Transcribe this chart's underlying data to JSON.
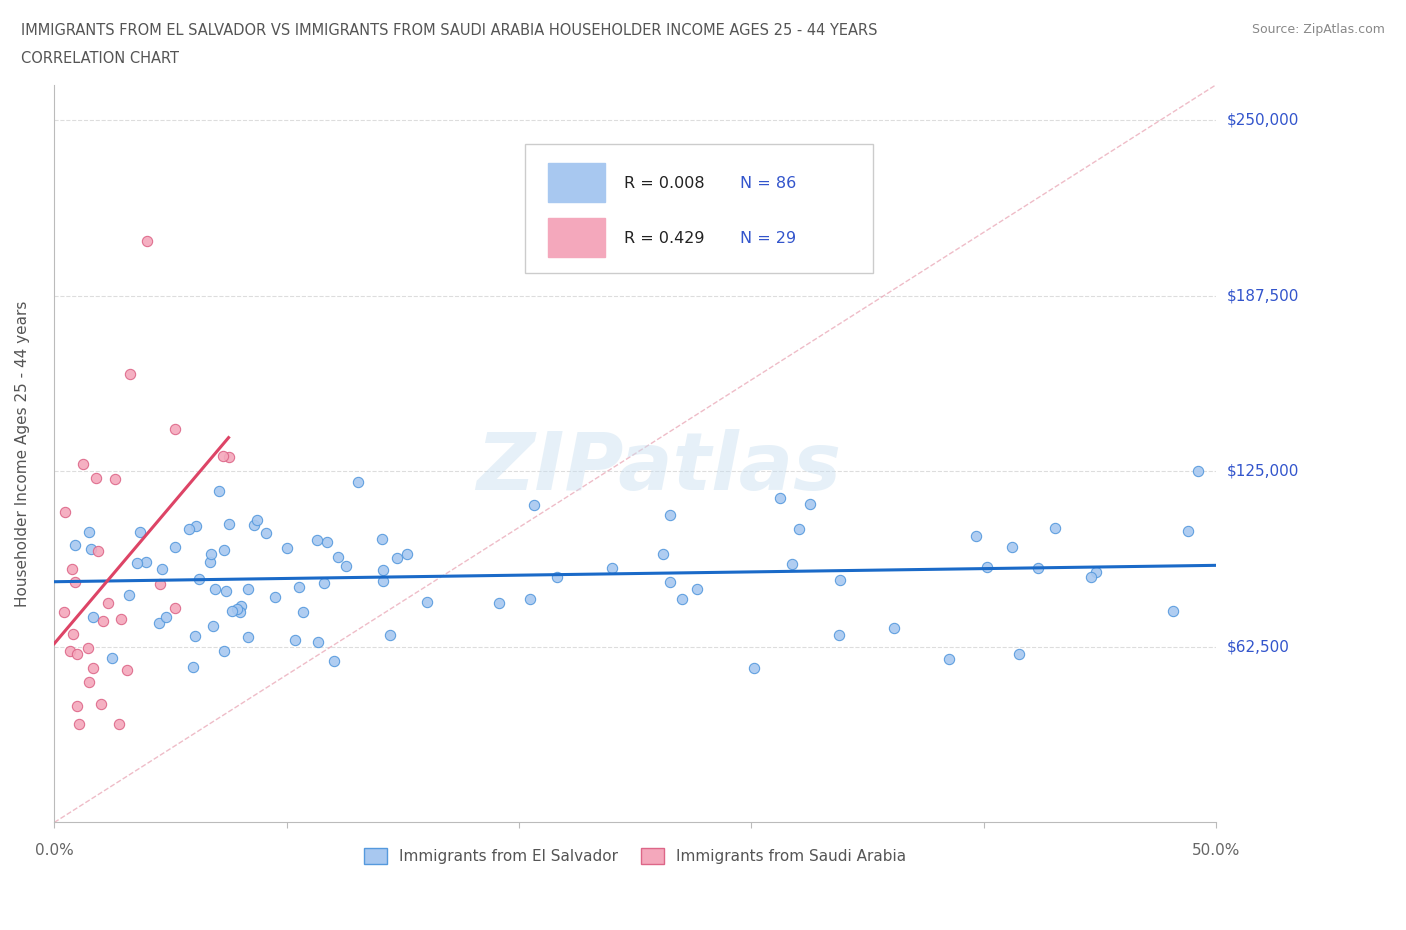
{
  "title_line1": "IMMIGRANTS FROM EL SALVADOR VS IMMIGRANTS FROM SAUDI ARABIA HOUSEHOLDER INCOME AGES 25 - 44 YEARS",
  "title_line2": "CORRELATION CHART",
  "source_text": "Source: ZipAtlas.com",
  "ylabel": "Householder Income Ages 25 - 44 years",
  "watermark": "ZIPatlas",
  "r_el_salvador": "0.008",
  "n_el_salvador": 86,
  "r_saudi_arabia": "0.429",
  "n_saudi_arabia": 29,
  "el_salvador_color": "#a8c8f0",
  "el_salvador_edge_color": "#5599dd",
  "el_salvador_line_color": "#1a6ac8",
  "saudi_arabia_color": "#f4a8bc",
  "saudi_arabia_edge_color": "#dd6688",
  "saudi_arabia_line_color": "#dd4466",
  "diagonal_color": "#e8a0b0",
  "xlim": [
    0.0,
    0.5
  ],
  "ylim": [
    0,
    262500
  ],
  "yticks": [
    0,
    62500,
    125000,
    187500,
    250000
  ],
  "ytick_labels": [
    "",
    "$62,500",
    "$125,000",
    "$187,500",
    "$250,000"
  ],
  "xticks": [
    0.0,
    0.1,
    0.2,
    0.3,
    0.4,
    0.5
  ],
  "xtick_labels": [
    "0.0%",
    "",
    "",
    "",
    "",
    "50.0%"
  ],
  "background_color": "#ffffff",
  "grid_color": "#dddddd",
  "r_color": "#3355cc",
  "legend_edge_color": "#cccccc"
}
